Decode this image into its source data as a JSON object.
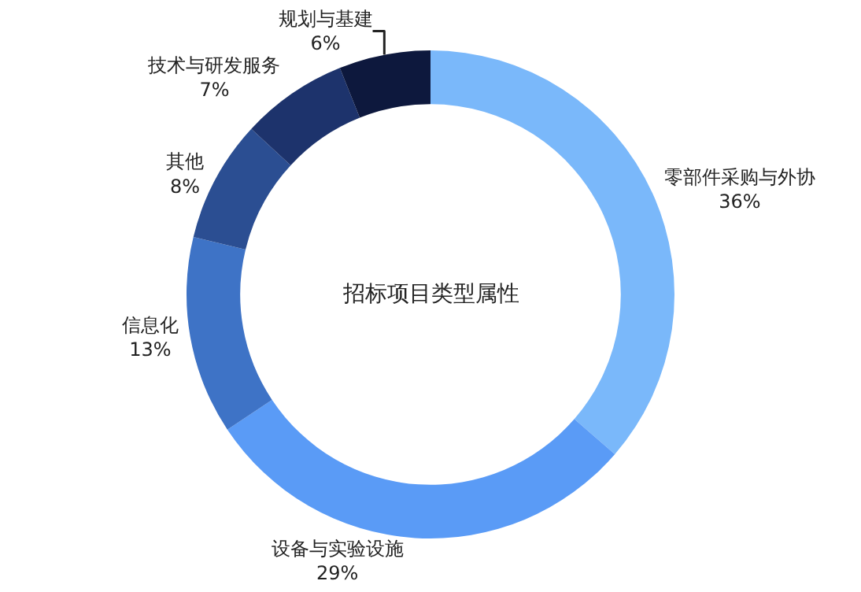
{
  "chart_data": {
    "type": "donut",
    "title": "招标项目类型属性",
    "categories": [
      "零部件采购与外协",
      "设备与实验设施",
      "信息化",
      "其他",
      "技术与研发服务",
      "规划与基建"
    ],
    "values": [
      36,
      29,
      13,
      8,
      7,
      6
    ],
    "value_labels": [
      "36%",
      "29%",
      "13%",
      "8%",
      "7%",
      "6%"
    ],
    "colors": [
      "#7ab8fa",
      "#5a9bf6",
      "#3e73c6",
      "#2b4e92",
      "#1d336c",
      "#0d183d"
    ],
    "legend": false
  }
}
